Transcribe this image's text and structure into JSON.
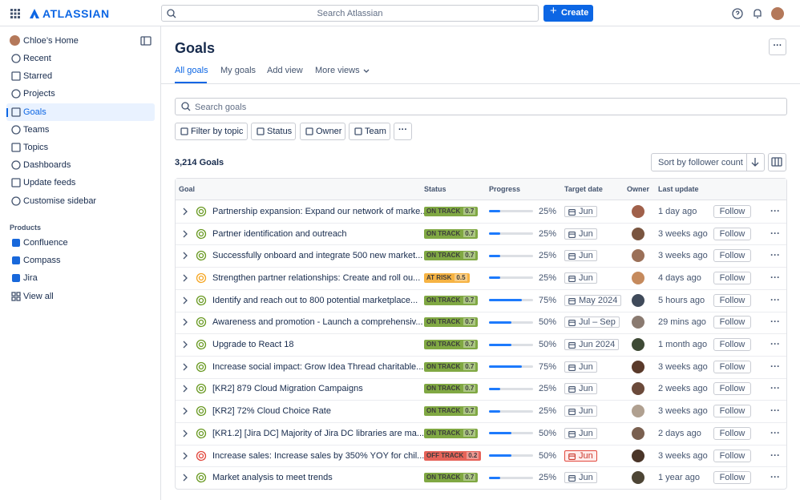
{
  "header": {
    "brand": "ATLASSIAN",
    "search": "Search Atlassian",
    "create": "Create"
  },
  "sidebar": {
    "home": "Chloe’s Home",
    "items": [
      "Recent",
      "Starred",
      "Projects",
      "Goals",
      "Teams",
      "Topics",
      "Dashboards",
      "Update feeds",
      "Customise sidebar"
    ],
    "products_heading": "Products",
    "products": [
      "Confluence",
      "Compass",
      "Jira",
      "View all"
    ]
  },
  "main": {
    "title": "Goals",
    "tabs": [
      "All goals",
      "My goals",
      "Add view",
      "More views"
    ],
    "search": "Search goals",
    "filters": [
      "Filter by topic",
      "Status",
      "Owner",
      "Team"
    ],
    "count": "3,214 Goals",
    "sort": "Sort by follower count",
    "follow_label": "Follow",
    "columns": [
      "Goal",
      "Status",
      "Progress",
      "Target date",
      "Owner",
      "Last update"
    ],
    "rows": [
      {
        "goal": "Partnership expansion: Expand our network of marke...",
        "status": "ON TRACK",
        "score": "0.7",
        "color": "#6a9a23",
        "progress": 25,
        "progress_label": "25%",
        "target": "Jun",
        "updated": "1 day ago"
      },
      {
        "goal": "Partner identification and outreach",
        "status": "ON TRACK",
        "score": "0.7",
        "color": "#6a9a23",
        "progress": 25,
        "progress_label": "25%",
        "target": "Jun",
        "updated": "3 weeks ago"
      },
      {
        "goal": "Successfully onboard and integrate 500 new market...",
        "status": "ON TRACK",
        "score": "0.7",
        "color": "#6a9a23",
        "progress": 25,
        "progress_label": "25%",
        "target": "Jun",
        "updated": "3 weeks ago"
      },
      {
        "goal": "Strengthen partner relationships:  Create and roll ou...",
        "status": "AT RISK",
        "score": "0.5",
        "color": "#f5a623",
        "progress": 25,
        "progress_label": "25%",
        "target": "Jun",
        "updated": "4 days ago"
      },
      {
        "goal": "Identify and reach out to 800 potential marketplace...",
        "status": "ON TRACK",
        "score": "0.7",
        "color": "#6a9a23",
        "progress": 75,
        "progress_label": "75%",
        "target": "May 2024",
        "updated": "5 hours ago"
      },
      {
        "goal": "Awareness and promotion - Launch a comprehensiv...",
        "status": "ON TRACK",
        "score": "0.7",
        "color": "#6a9a23",
        "progress": 50,
        "progress_label": "50%",
        "target": "Jul – Sep",
        "updated": "29 mins ago"
      },
      {
        "goal": "Upgrade to React 18",
        "status": "ON TRACK",
        "score": "0.7",
        "color": "#6a9a23",
        "progress": 50,
        "progress_label": "50%",
        "target": "Jun 2024",
        "updated": "1 month ago"
      },
      {
        "goal": "Increase social impact: Grow Idea Thread charitable...",
        "status": "ON TRACK",
        "score": "0.7",
        "color": "#6a9a23",
        "progress": 75,
        "progress_label": "75%",
        "target": "Jun",
        "updated": "3 weeks ago"
      },
      {
        "goal": "[KR2] 879 Cloud Migration Campaigns",
        "status": "ON TRACK",
        "score": "0.7",
        "color": "#6a9a23",
        "progress": 25,
        "progress_label": "25%",
        "target": "Jun",
        "updated": "2 weeks ago"
      },
      {
        "goal": "[KR2] 72% Cloud Choice Rate",
        "status": "ON TRACK",
        "score": "0.7",
        "color": "#6a9a23",
        "progress": 25,
        "progress_label": "25%",
        "target": "Jun",
        "updated": "3 weeks ago"
      },
      {
        "goal": "[KR1.2] [Jira DC] Majority of Jira DC libraries are ma...",
        "status": "ON TRACK",
        "score": "0.7",
        "color": "#6a9a23",
        "progress": 50,
        "progress_label": "50%",
        "target": "Jun",
        "updated": "2 days ago"
      },
      {
        "goal": "Increase sales: Increase sales by 350% YOY for chil...",
        "status": "OFF TRACK",
        "score": "0.2",
        "color": "#e2483d",
        "progress": 50,
        "progress_label": "50%",
        "target": "Jun",
        "target_alert": true,
        "updated": "3 weeks ago"
      },
      {
        "goal": "Market analysis to meet trends",
        "status": "ON TRACK",
        "score": "0.7",
        "color": "#6a9a23",
        "progress": 25,
        "progress_label": "25%",
        "target": "Jun",
        "updated": "1 year ago"
      }
    ]
  }
}
